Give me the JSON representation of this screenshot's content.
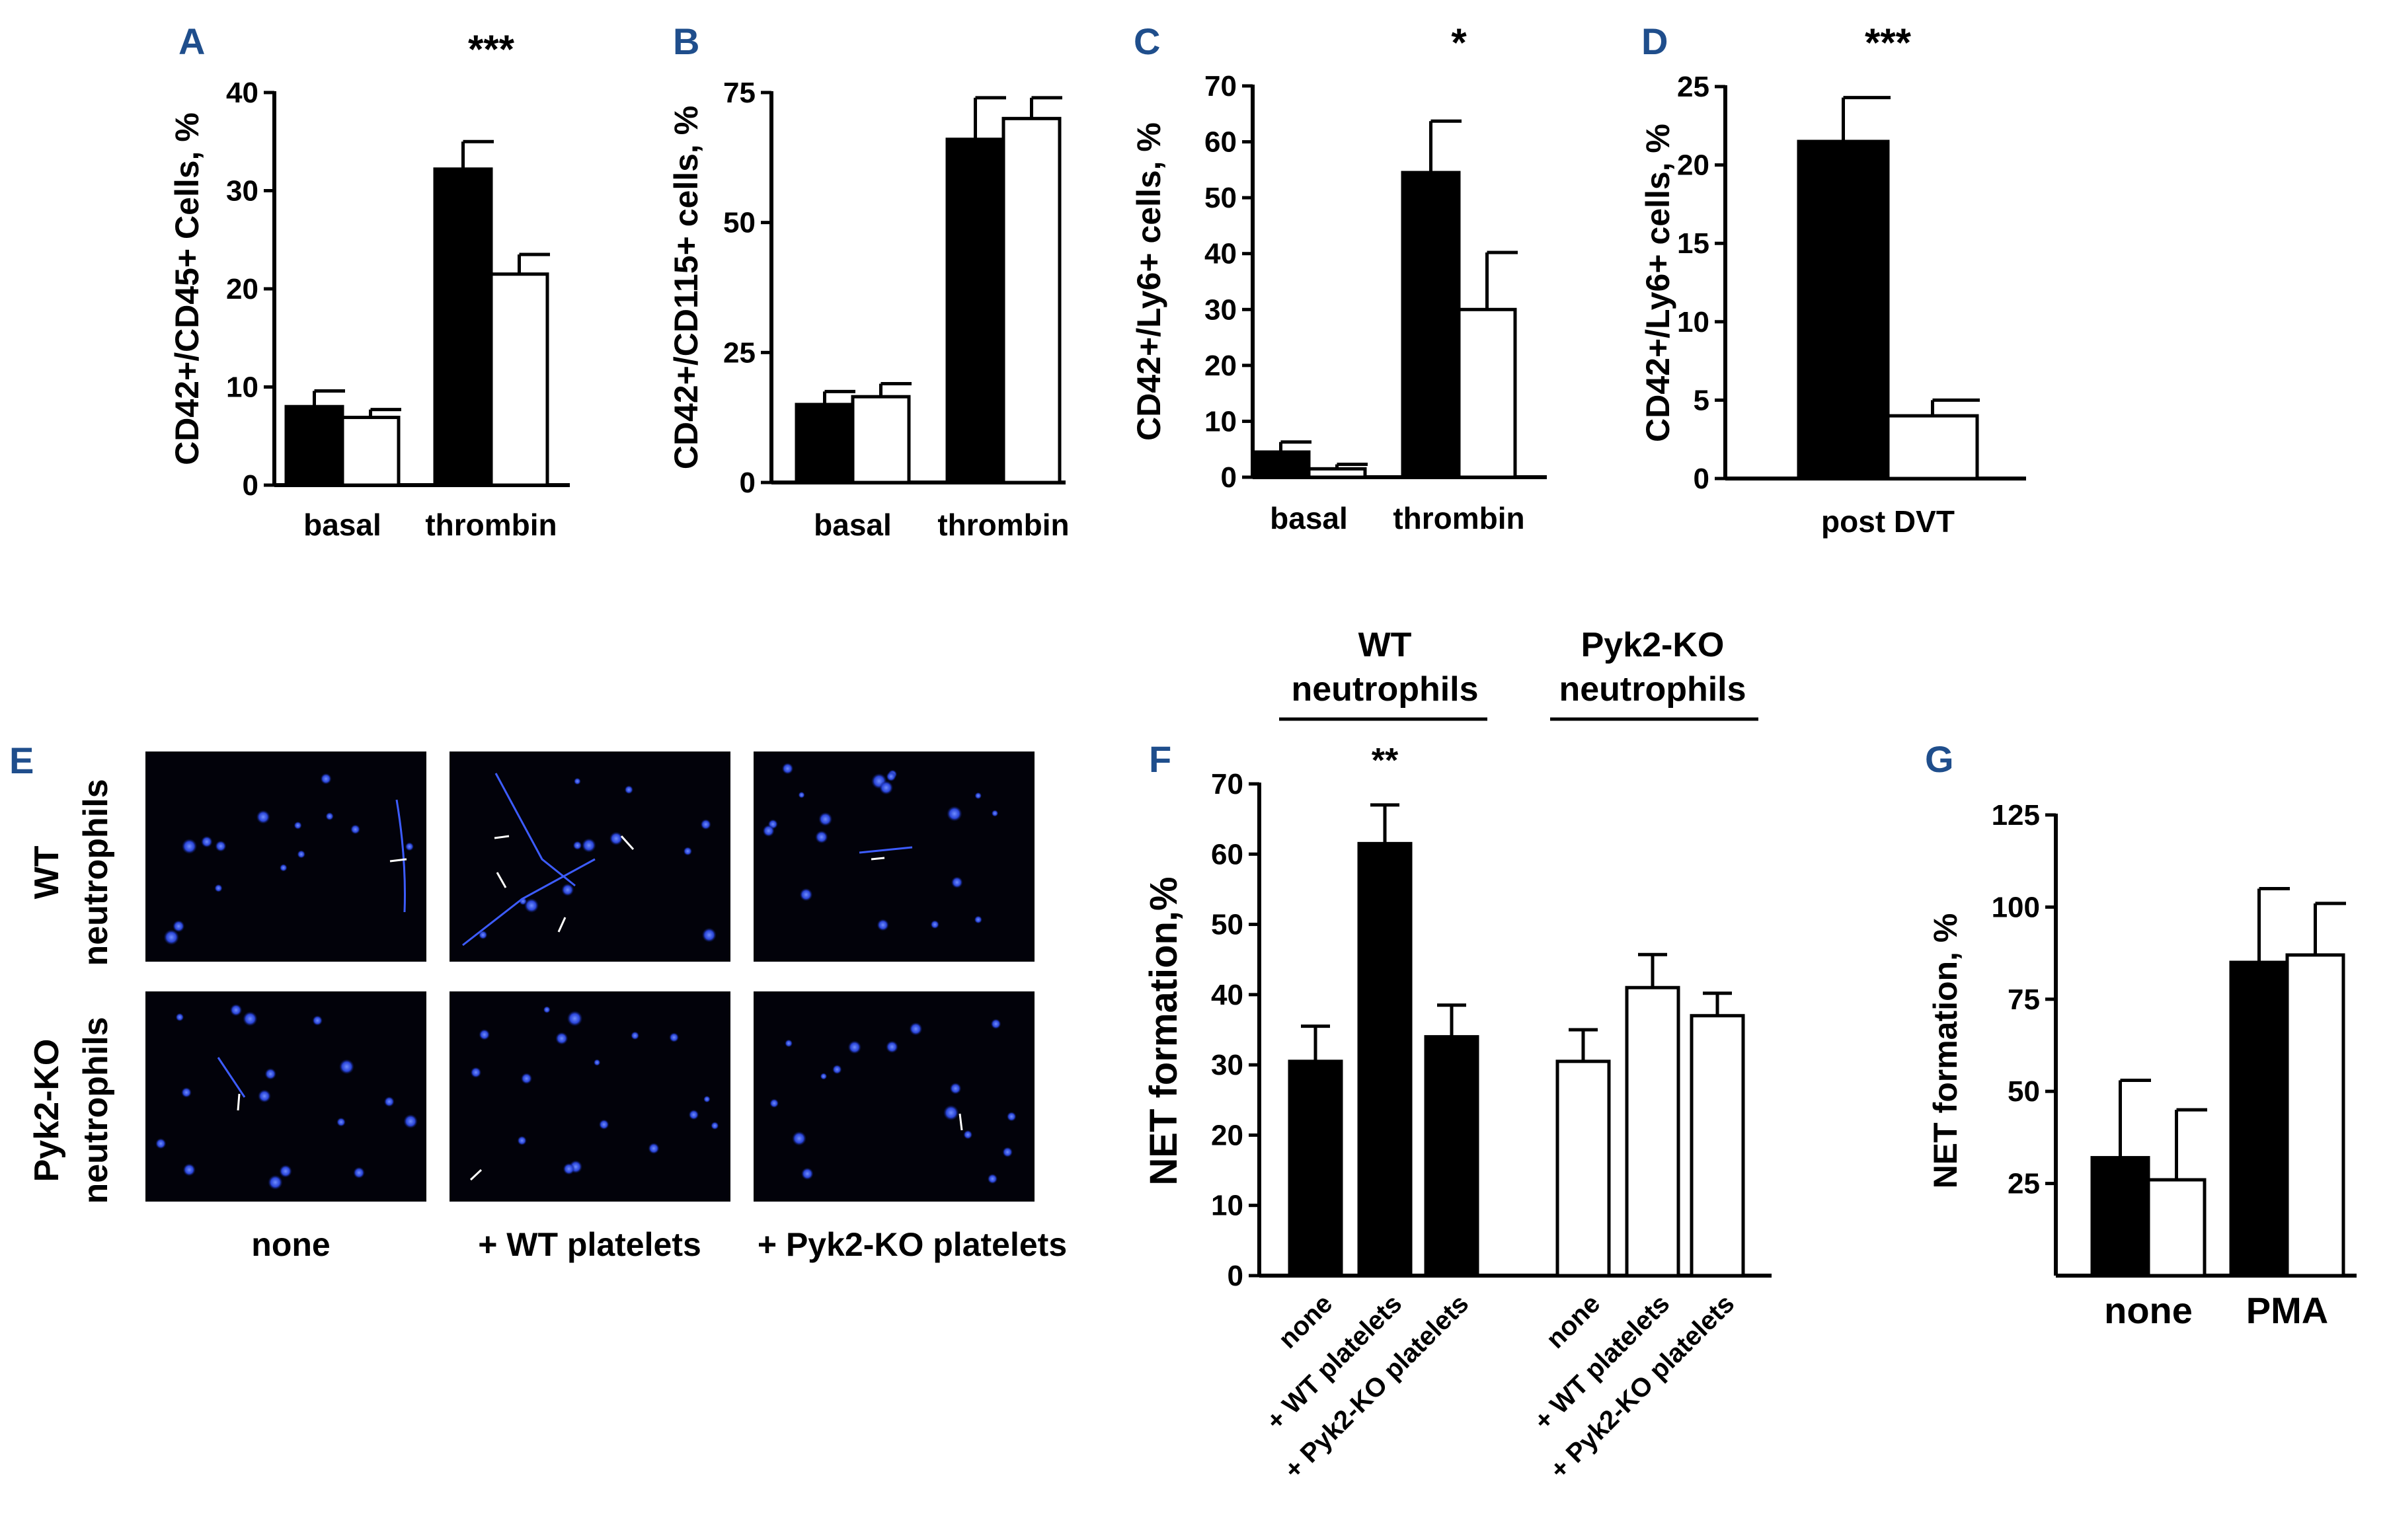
{
  "chart_data": [
    {
      "panel": "A",
      "type": "bar",
      "categories": [
        "basal",
        "thrombin"
      ],
      "series": [
        {
          "values": [
            8,
            32.2
          ],
          "errors": [
            1.6,
            2.8
          ],
          "fill": "#000000"
        },
        {
          "values": [
            6.9,
            21.5
          ],
          "errors": [
            0.8,
            2.0
          ],
          "fill": "#ffffff"
        }
      ],
      "ylabel": "CD42+/CD45+  Cells, %",
      "ylim": [
        0,
        40
      ],
      "yticks": [
        0,
        10,
        20,
        30,
        40
      ],
      "annotations": [
        {
          "category": "thrombin",
          "text": "***"
        }
      ]
    },
    {
      "panel": "B",
      "type": "bar",
      "categories": [
        "basal",
        "thrombin"
      ],
      "series": [
        {
          "values": [
            15,
            66
          ],
          "errors": [
            2.5,
            8
          ],
          "fill": "#000000"
        },
        {
          "values": [
            16.5,
            70
          ],
          "errors": [
            2.5,
            4
          ],
          "fill": "#ffffff"
        }
      ],
      "ylabel": "CD42+/CD115+ cells, %",
      "ylim": [
        0,
        75
      ],
      "yticks": [
        0,
        25,
        50,
        75
      ],
      "annotations": []
    },
    {
      "panel": "C",
      "type": "bar",
      "categories": [
        "basal",
        "thrombin"
      ],
      "series": [
        {
          "values": [
            4.5,
            54.5
          ],
          "errors": [
            1.8,
            9.2
          ],
          "fill": "#000000"
        },
        {
          "values": [
            1.5,
            30
          ],
          "errors": [
            0.8,
            10.2
          ],
          "fill": "#ffffff"
        }
      ],
      "ylabel": "CD42+/Ly6+ cells, %",
      "ylim": [
        0,
        70
      ],
      "yticks": [
        0,
        10,
        20,
        30,
        40,
        50,
        60,
        70
      ],
      "annotations": [
        {
          "category": "thrombin",
          "text": "*"
        }
      ]
    },
    {
      "panel": "D",
      "type": "bar",
      "categories": [
        "post DVT"
      ],
      "series": [
        {
          "values": [
            21.5
          ],
          "errors": [
            2.8
          ],
          "fill": "#000000"
        },
        {
          "values": [
            4
          ],
          "errors": [
            1
          ],
          "fill": "#ffffff"
        }
      ],
      "ylabel": "CD42+/Ly6+ cells, %",
      "ylim": [
        0,
        25
      ],
      "yticks": [
        0,
        5,
        10,
        15,
        20,
        25
      ],
      "annotations": [
        {
          "category": "post DVT",
          "text": "***"
        }
      ]
    },
    {
      "panel": "F",
      "type": "bar",
      "groups": [
        "WT neutrophils",
        "Pyk2-KO neutrophils"
      ],
      "categories": [
        "none",
        "+ WT platelets",
        "+ Pyk2-KO platelets",
        "none",
        "+ WT platelets",
        "+ Pyk2-KO platelets"
      ],
      "values": [
        30.5,
        61.5,
        34,
        30.5,
        41,
        37
      ],
      "errors": [
        5,
        5.5,
        4.5,
        4.5,
        4.7,
        3.2
      ],
      "fills": [
        "#000000",
        "#000000",
        "#000000",
        "#ffffff",
        "#ffffff",
        "#ffffff"
      ],
      "ylabel": "NET   formation,%",
      "ylim": [
        0,
        70
      ],
      "yticks": [
        0,
        10,
        20,
        30,
        40,
        50,
        60,
        70
      ],
      "annotations": [
        {
          "index": 1,
          "text": "**"
        }
      ]
    },
    {
      "panel": "G",
      "type": "bar",
      "categories": [
        "none",
        "PMA"
      ],
      "series": [
        {
          "values": [
            32,
            85
          ],
          "errors": [
            21,
            20
          ],
          "fill": "#000000"
        },
        {
          "values": [
            26,
            87
          ],
          "errors": [
            19,
            14
          ],
          "fill": "#ffffff"
        }
      ],
      "ylabel": "NET formation, %",
      "ylim": [
        0,
        125
      ],
      "yticks": [
        25,
        50,
        75,
        100,
        125
      ],
      "annotations": []
    }
  ],
  "panels": {
    "A": "A",
    "B": "B",
    "C": "C",
    "D": "D",
    "E": "E",
    "F": "F",
    "G": "G"
  },
  "panel_f_headers": {
    "wt_line1": "WT",
    "wt_line2": "neutrophils",
    "ko_line1": "Pyk2-KO",
    "ko_line2": "neutrophils"
  },
  "micrographs": {
    "row_labels": [
      {
        "line1": "WT",
        "line2": "neutrophils"
      },
      {
        "line1": "Pyk2-KO",
        "line2": "neutrophils"
      }
    ],
    "column_labels": [
      "none",
      "+ WT platelets",
      "+ Pyk2-KO platelets"
    ]
  }
}
